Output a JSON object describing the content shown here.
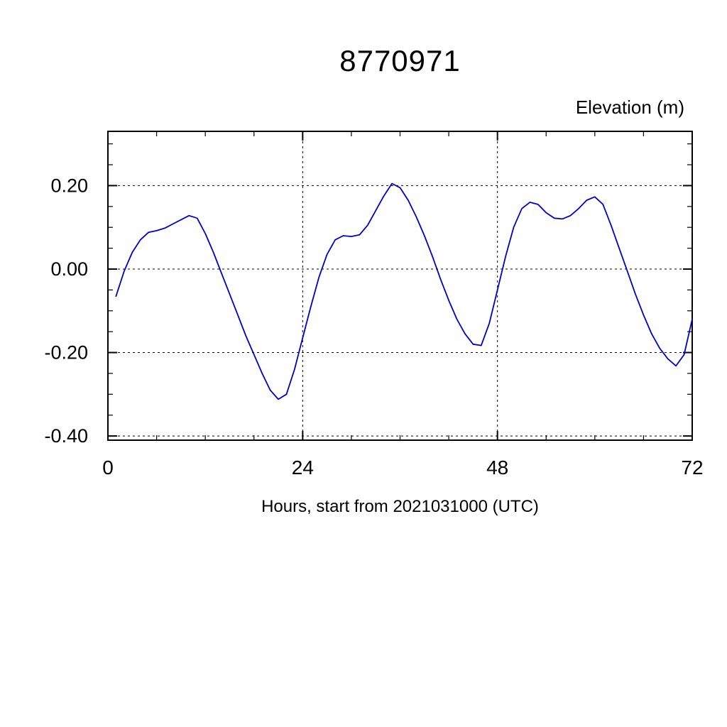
{
  "header": {
    "title": "8770971",
    "right_axis_title": "Elevation (m)",
    "x_axis_title": "Hours, start from 2021031000 (UTC)"
  },
  "chart_data": {
    "type": "line",
    "title": "8770971",
    "ylabel": "Elevation (m)",
    "xlabel": "Hours, start from 2021031000 (UTC)",
    "xlim": [
      0,
      72
    ],
    "ylim": [
      -0.41,
      0.33
    ],
    "xticks": [
      0,
      24,
      48,
      72
    ],
    "xtick_labels": [
      "0",
      "24",
      "48",
      "72"
    ],
    "yticks": [
      0.2,
      0.0,
      -0.2,
      -0.4
    ],
    "ytick_labels": [
      "0.20",
      "0.00",
      "-0.20",
      "-0.40"
    ],
    "minor_x_interval": 6,
    "minor_y_interval": 0.05,
    "grid_x": [
      24,
      48
    ],
    "grid_y": [
      0.2,
      0.0,
      -0.2,
      -0.4
    ],
    "grid_style": "dashed",
    "legend": "none",
    "line_color": "#0000cd",
    "axis_color": "#000000",
    "x": [
      1,
      2,
      3,
      4,
      5,
      6,
      7,
      8,
      9,
      10,
      11,
      12,
      13,
      14,
      15,
      16,
      17,
      18,
      19,
      20,
      21,
      22,
      23,
      24,
      25,
      26,
      27,
      28,
      29,
      30,
      31,
      32,
      33,
      34,
      35,
      36,
      37,
      38,
      39,
      40,
      41,
      42,
      43,
      44,
      45,
      46,
      47,
      48,
      49,
      50,
      51,
      52,
      53,
      54,
      55,
      56,
      57,
      58,
      59,
      60,
      61,
      62,
      63,
      64,
      65,
      66,
      67,
      68,
      69,
      70,
      71,
      72
    ],
    "values": [
      -0.065,
      -0.005,
      0.04,
      0.07,
      0.088,
      0.092,
      0.098,
      0.108,
      0.118,
      0.128,
      0.122,
      0.085,
      0.04,
      -0.01,
      -0.06,
      -0.11,
      -0.16,
      -0.205,
      -0.25,
      -0.29,
      -0.312,
      -0.3,
      -0.24,
      -0.165,
      -0.09,
      -0.02,
      0.035,
      0.07,
      0.08,
      0.078,
      0.082,
      0.105,
      0.14,
      0.175,
      0.205,
      0.195,
      0.165,
      0.125,
      0.08,
      0.03,
      -0.025,
      -0.075,
      -0.12,
      -0.155,
      -0.18,
      -0.183,
      -0.13,
      -0.05,
      0.03,
      0.1,
      0.145,
      0.16,
      0.155,
      0.135,
      0.122,
      0.12,
      0.128,
      0.145,
      0.165,
      0.173,
      0.155,
      0.105,
      0.05,
      -0.005,
      -0.06,
      -0.11,
      -0.155,
      -0.19,
      -0.215,
      -0.232,
      -0.205,
      -0.12
    ]
  }
}
